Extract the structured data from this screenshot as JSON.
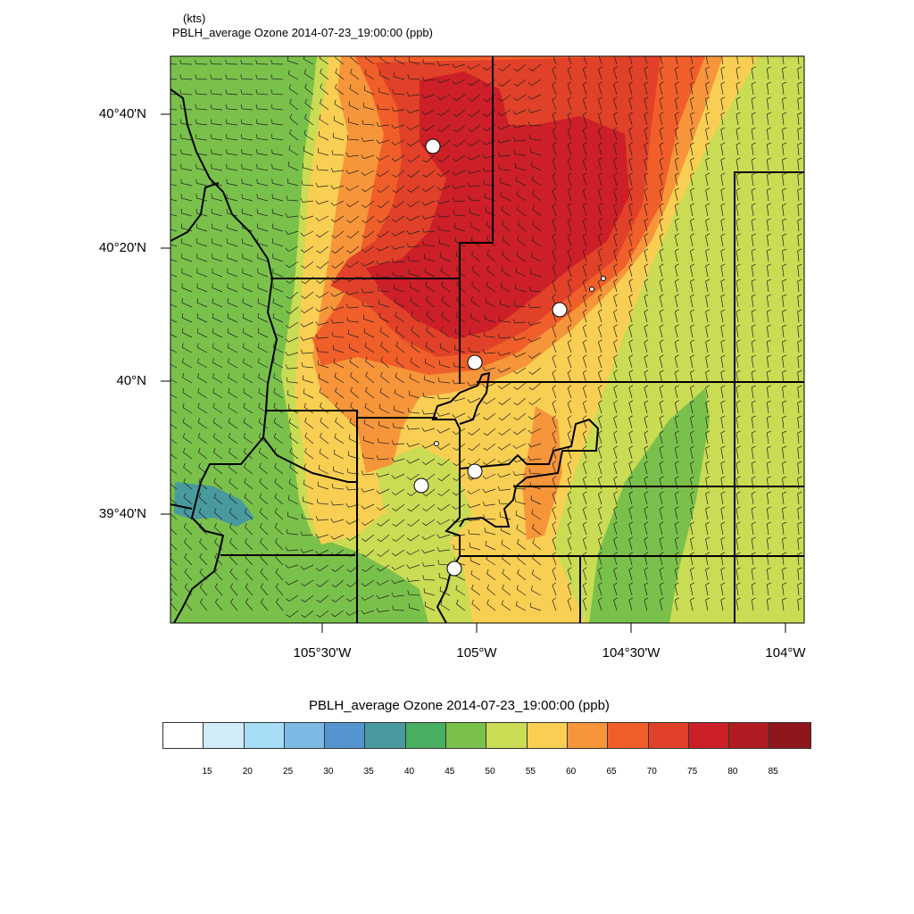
{
  "header": {
    "units": "(kts)",
    "title": "PBLH_average Ozone   2014-07-23_19:00:00   (ppb)"
  },
  "axes": {
    "lat_ticks": [
      "40°40'N",
      "40°20'N",
      "40°N",
      "39°40'N"
    ],
    "lon_ticks": [
      "105°30'W",
      "105°W",
      "104°30'W",
      "104°W"
    ]
  },
  "colorbar": {
    "title": "PBLH_average Ozone   2014-07-23_19:00:00  (ppb)",
    "labels": [
      "15",
      "20",
      "25",
      "30",
      "35",
      "40",
      "45",
      "50",
      "55",
      "60",
      "65",
      "70",
      "75",
      "80",
      "85"
    ],
    "colors": [
      "#ffffff",
      "#d0ecf8",
      "#a6dcf6",
      "#7cb9e4",
      "#5495cf",
      "#489a9e",
      "#48ae62",
      "#7ac14b",
      "#cadb54",
      "#f9cf53",
      "#f7953a",
      "#f05f2a",
      "#e04128",
      "#cd1f27",
      "#b01b22",
      "#8f161b"
    ]
  },
  "map": {
    "overlay": "wind-barbs",
    "stations": 7
  }
}
